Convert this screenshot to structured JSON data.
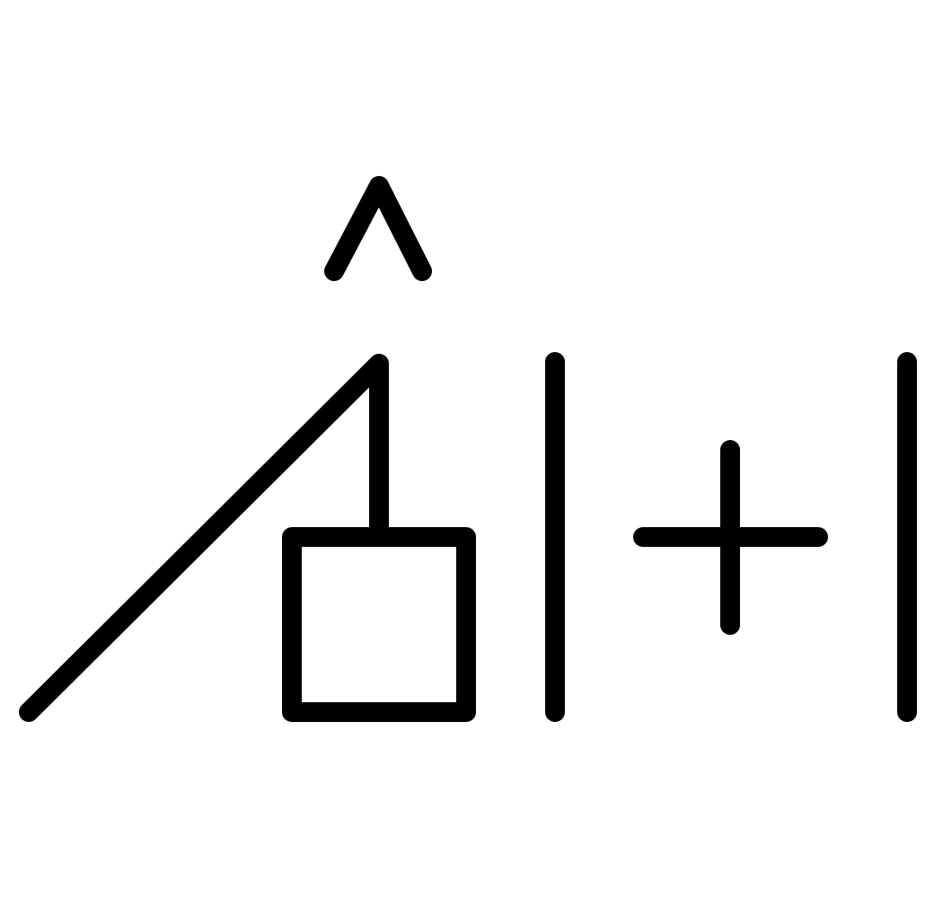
{
  "diagram": {
    "ink_color": "#000000",
    "background_color": "#ffffff",
    "symbols": [
      "hat-caret-icon",
      "diagonal-ramp-line",
      "vertical-connector-line",
      "square-box",
      "vertical-bar-left",
      "plus-sign-icon",
      "vertical-bar-right"
    ]
  }
}
